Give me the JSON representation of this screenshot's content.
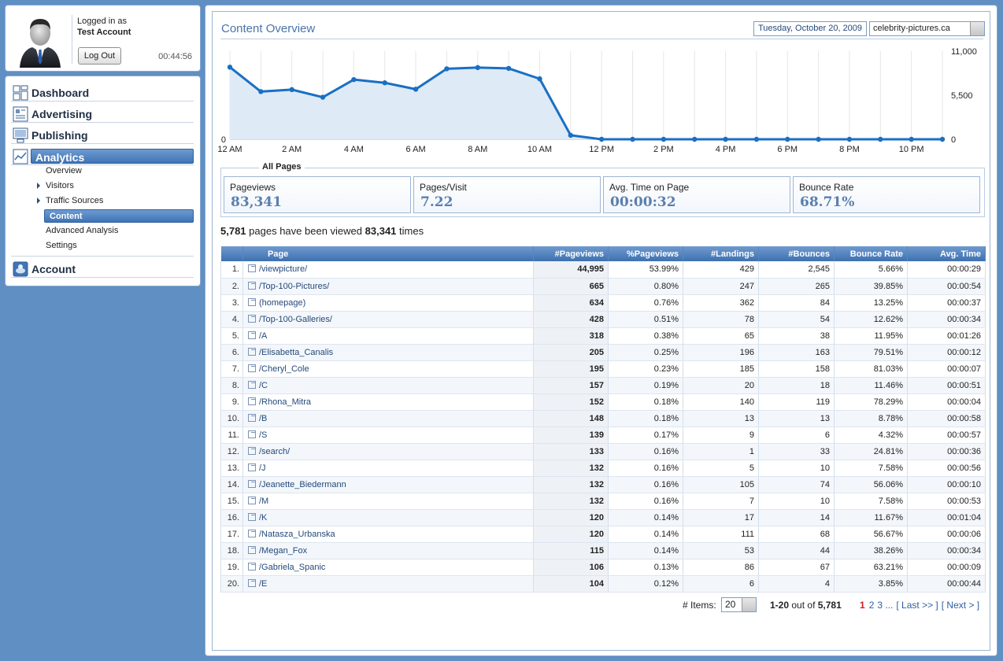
{
  "user": {
    "logged_label": "Logged in as",
    "account_name": "Test Account",
    "logout_label": "Log Out",
    "session_time": "00:44:56"
  },
  "nav": {
    "dashboard": "Dashboard",
    "advertising": "Advertising",
    "publishing": "Publishing",
    "analytics": "Analytics",
    "account": "Account",
    "sub": {
      "overview": "Overview",
      "visitors": "Visitors",
      "traffic_sources": "Traffic Sources",
      "content": "Content",
      "advanced_analysis": "Advanced Analysis",
      "settings": "Settings"
    }
  },
  "header": {
    "title": "Content Overview",
    "date": "Tuesday, October 20, 2009",
    "site": "celebrity-pictures.ca"
  },
  "chart_data": {
    "type": "area",
    "x_ticks": [
      "12 AM",
      "2 AM",
      "4 AM",
      "6 AM",
      "8 AM",
      "10 AM",
      "12 PM",
      "2 PM",
      "4 PM",
      "6 PM",
      "8 PM",
      "10 PM"
    ],
    "y_ticks": [
      "11,000",
      "5,500",
      "0"
    ],
    "y_left_tick": "0",
    "ylim": [
      0,
      11000
    ],
    "values": [
      9000,
      5950,
      6200,
      5250,
      7450,
      7050,
      6250,
      8800,
      8950,
      8850,
      7550,
      500,
      0,
      0,
      0,
      0,
      0,
      0,
      0,
      0,
      0,
      0,
      0,
      0
    ],
    "colors": {
      "line": "#1a6fc4",
      "fill": "#deeaf5",
      "grid": "#e6e6e6"
    }
  },
  "metrics": {
    "group_title": "All Pages",
    "items": [
      {
        "label": "Pageviews",
        "value": "83,341"
      },
      {
        "label": "Pages/Visit",
        "value": "7.22"
      },
      {
        "label": "Avg. Time on Page",
        "value": "00:00:32"
      },
      {
        "label": "Bounce Rate",
        "value": "68.71%"
      }
    ]
  },
  "summary": {
    "pages": "5,781",
    "middle": "pages have been viewed",
    "views": "83,341",
    "suffix": "times"
  },
  "table": {
    "headers": [
      "",
      "Page",
      "#Pageviews",
      "%Pageviews",
      "#Landings",
      "#Bounces",
      "Bounce Rate",
      "Avg. Time"
    ],
    "rows": [
      [
        "1.",
        "/viewpicture/",
        "44,995",
        "53.99%",
        "429",
        "2,545",
        "5.66%",
        "00:00:29"
      ],
      [
        "2.",
        "/Top-100-Pictures/",
        "665",
        "0.80%",
        "247",
        "265",
        "39.85%",
        "00:00:54"
      ],
      [
        "3.",
        "(homepage)",
        "634",
        "0.76%",
        "362",
        "84",
        "13.25%",
        "00:00:37"
      ],
      [
        "4.",
        "/Top-100-Galleries/",
        "428",
        "0.51%",
        "78",
        "54",
        "12.62%",
        "00:00:34"
      ],
      [
        "5.",
        "/A",
        "318",
        "0.38%",
        "65",
        "38",
        "11.95%",
        "00:01:26"
      ],
      [
        "6.",
        "/Elisabetta_Canalis",
        "205",
        "0.25%",
        "196",
        "163",
        "79.51%",
        "00:00:12"
      ],
      [
        "7.",
        "/Cheryl_Cole",
        "195",
        "0.23%",
        "185",
        "158",
        "81.03%",
        "00:00:07"
      ],
      [
        "8.",
        "/C",
        "157",
        "0.19%",
        "20",
        "18",
        "11.46%",
        "00:00:51"
      ],
      [
        "9.",
        "/Rhona_Mitra",
        "152",
        "0.18%",
        "140",
        "119",
        "78.29%",
        "00:00:04"
      ],
      [
        "10.",
        "/B",
        "148",
        "0.18%",
        "13",
        "13",
        "8.78%",
        "00:00:58"
      ],
      [
        "11.",
        "/S",
        "139",
        "0.17%",
        "9",
        "6",
        "4.32%",
        "00:00:57"
      ],
      [
        "12.",
        "/search/",
        "133",
        "0.16%",
        "1",
        "33",
        "24.81%",
        "00:00:36"
      ],
      [
        "13.",
        "/J",
        "132",
        "0.16%",
        "5",
        "10",
        "7.58%",
        "00:00:56"
      ],
      [
        "14.",
        "/Jeanette_Biedermann",
        "132",
        "0.16%",
        "105",
        "74",
        "56.06%",
        "00:00:10"
      ],
      [
        "15.",
        "/M",
        "132",
        "0.16%",
        "7",
        "10",
        "7.58%",
        "00:00:53"
      ],
      [
        "16.",
        "/K",
        "120",
        "0.14%",
        "17",
        "14",
        "11.67%",
        "00:01:04"
      ],
      [
        "17.",
        "/Natasza_Urbanska",
        "120",
        "0.14%",
        "111",
        "68",
        "56.67%",
        "00:00:06"
      ],
      [
        "18.",
        "/Megan_Fox",
        "115",
        "0.14%",
        "53",
        "44",
        "38.26%",
        "00:00:34"
      ],
      [
        "19.",
        "/Gabriela_Spanic",
        "106",
        "0.13%",
        "86",
        "67",
        "63.21%",
        "00:00:09"
      ],
      [
        "20.",
        "/E",
        "104",
        "0.12%",
        "6",
        "4",
        "3.85%",
        "00:00:44"
      ]
    ]
  },
  "pager": {
    "items_label": "# Items:",
    "items_value": "20",
    "range": "1-20",
    "out_of": "out of",
    "total": "5,781",
    "current": "1",
    "p2": "2",
    "p3": "3 ...",
    "last": "[ Last >> ]",
    "next": "[ Next > ]"
  }
}
